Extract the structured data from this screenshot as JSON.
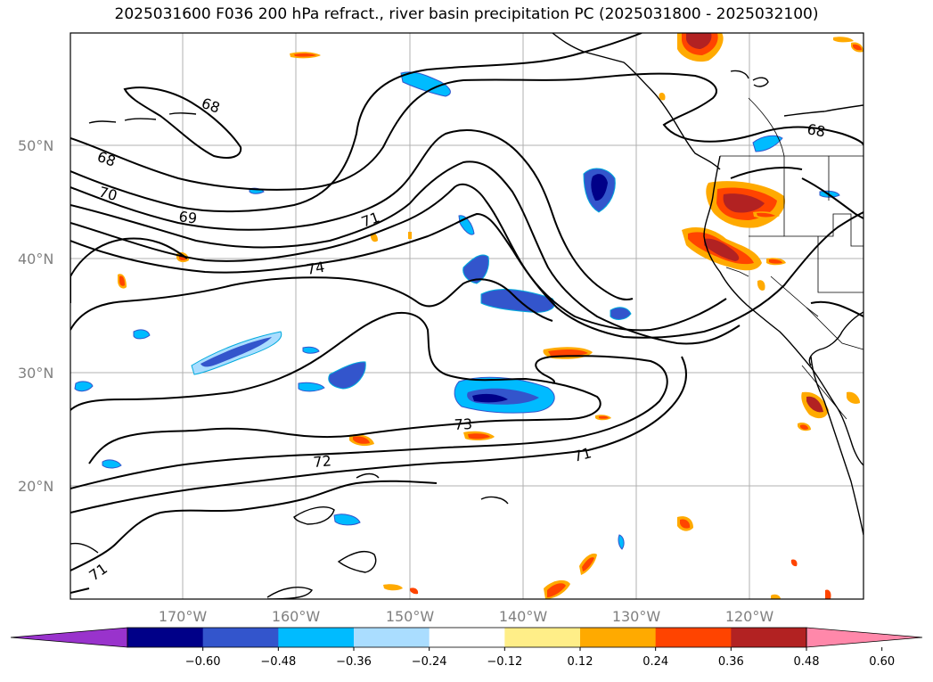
{
  "title": "2025031600 F036 200 hPa refract., river basin precipitation PC (2025031800 - 2025032100)",
  "latitude_labels": [
    "50°N",
    "40°N",
    "30°N",
    "20°N"
  ],
  "longitude_labels": [
    "170°W",
    "160°W",
    "150°W",
    "140°W",
    "130°W",
    "120°W"
  ],
  "colorbar": {
    "colors": [
      "#9933cc",
      "#000088",
      "#3355cc",
      "#00bbff",
      "#aaddff",
      "#ffffff",
      "#ffee88",
      "#ffaa00",
      "#ff4400",
      "#b22222",
      "#ff88aa"
    ],
    "tick_labels": [
      "−0.60",
      "−0.48",
      "−0.36",
      "−0.24",
      "−0.12",
      "0.12",
      "0.24",
      "0.36",
      "0.48",
      "0.60"
    ],
    "extend": "both"
  },
  "contour_labels": [
    "68",
    "68",
    "68",
    "69",
    "70",
    "71",
    "71",
    "71",
    "72",
    "73",
    "74"
  ]
}
